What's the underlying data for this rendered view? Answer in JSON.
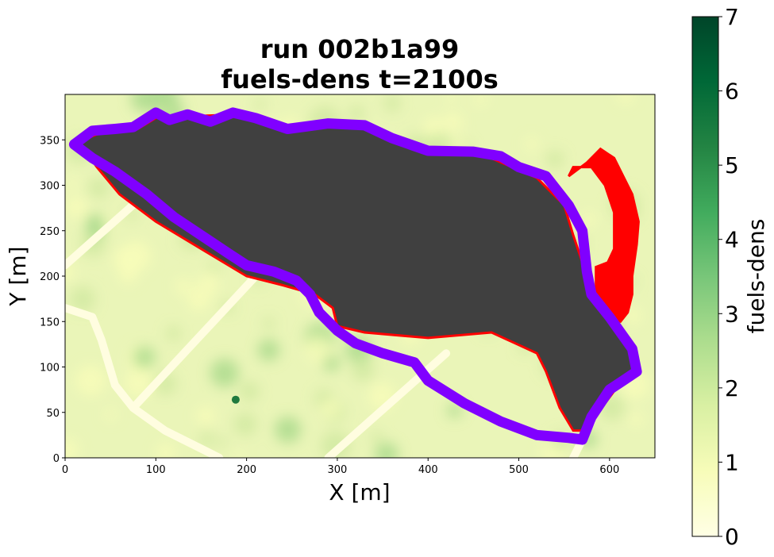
{
  "chart_data": {
    "type": "heatmap",
    "title_line1": "run 002b1a99",
    "title_line2": "fuels-dens t=2100s",
    "xlabel": "X [m]",
    "ylabel": "Y [m]",
    "xlim": [
      0,
      650
    ],
    "ylim": [
      0,
      400
    ],
    "x_ticks": [
      0,
      100,
      200,
      300,
      400,
      500,
      600
    ],
    "y_ticks": [
      0,
      50,
      100,
      150,
      200,
      250,
      300,
      350
    ],
    "colorbar": {
      "label": "fuels-dens",
      "range": [
        0,
        7
      ],
      "ticks": [
        0,
        1,
        2,
        3,
        4,
        5,
        6,
        7
      ],
      "colormap": "YlGn",
      "colors": [
        "#ffffe5",
        "#f7fcb9",
        "#d9f0a3",
        "#addd8e",
        "#78c679",
        "#41ab5d",
        "#238443",
        "#006837",
        "#004529"
      ]
    },
    "colors": {
      "burned_area": "#404040",
      "active_fire_front": "#ff0000",
      "perimeter": "#8000ff"
    },
    "burned_area": [
      [
        15,
        348
      ],
      [
        40,
        358
      ],
      [
        80,
        362
      ],
      [
        100,
        374
      ],
      [
        140,
        376
      ],
      [
        190,
        378
      ],
      [
        230,
        364
      ],
      [
        280,
        368
      ],
      [
        320,
        366
      ],
      [
        360,
        352
      ],
      [
        400,
        340
      ],
      [
        460,
        334
      ],
      [
        520,
        308
      ],
      [
        550,
        278
      ],
      [
        560,
        245
      ],
      [
        570,
        215
      ],
      [
        580,
        178
      ],
      [
        600,
        155
      ],
      [
        625,
        120
      ],
      [
        630,
        95
      ],
      [
        610,
        80
      ],
      [
        595,
        60
      ],
      [
        575,
        30
      ],
      [
        560,
        30
      ],
      [
        545,
        55
      ],
      [
        530,
        95
      ],
      [
        520,
        115
      ],
      [
        470,
        138
      ],
      [
        400,
        132
      ],
      [
        330,
        138
      ],
      [
        300,
        145
      ],
      [
        295,
        165
      ],
      [
        275,
        180
      ],
      [
        240,
        190
      ],
      [
        200,
        200
      ],
      [
        150,
        230
      ],
      [
        100,
        260
      ],
      [
        60,
        290
      ],
      [
        35,
        320
      ]
    ],
    "fire_front": [
      [
        555,
        310
      ],
      [
        575,
        325
      ],
      [
        590,
        340
      ],
      [
        605,
        330
      ],
      [
        615,
        310
      ],
      [
        625,
        290
      ],
      [
        632,
        260
      ],
      [
        630,
        235
      ],
      [
        625,
        200
      ],
      [
        625,
        180
      ],
      [
        620,
        160
      ],
      [
        612,
        150
      ],
      [
        600,
        155
      ],
      [
        585,
        185
      ],
      [
        585,
        210
      ],
      [
        598,
        215
      ],
      [
        605,
        230
      ],
      [
        605,
        270
      ],
      [
        595,
        300
      ],
      [
        580,
        320
      ],
      [
        560,
        320
      ]
    ],
    "perimeter": [
      [
        10,
        345
      ],
      [
        30,
        360
      ],
      [
        55,
        362
      ],
      [
        75,
        364
      ],
      [
        100,
        380
      ],
      [
        115,
        372
      ],
      [
        135,
        378
      ],
      [
        160,
        370
      ],
      [
        185,
        380
      ],
      [
        210,
        374
      ],
      [
        245,
        362
      ],
      [
        290,
        368
      ],
      [
        330,
        366
      ],
      [
        360,
        352
      ],
      [
        400,
        338
      ],
      [
        450,
        337
      ],
      [
        480,
        332
      ],
      [
        500,
        320
      ],
      [
        530,
        310
      ],
      [
        555,
        278
      ],
      [
        570,
        250
      ],
      [
        575,
        205
      ],
      [
        580,
        180
      ],
      [
        600,
        155
      ],
      [
        625,
        120
      ],
      [
        630,
        95
      ],
      [
        615,
        85
      ],
      [
        600,
        75
      ],
      [
        590,
        60
      ],
      [
        580,
        45
      ],
      [
        570,
        20
      ],
      [
        555,
        22
      ],
      [
        520,
        25
      ],
      [
        480,
        40
      ],
      [
        440,
        60
      ],
      [
        400,
        85
      ],
      [
        385,
        105
      ],
      [
        350,
        115
      ],
      [
        320,
        126
      ],
      [
        300,
        140
      ],
      [
        280,
        160
      ],
      [
        270,
        180
      ],
      [
        255,
        195
      ],
      [
        230,
        205
      ],
      [
        200,
        212
      ],
      [
        180,
        225
      ],
      [
        150,
        245
      ],
      [
        120,
        265
      ],
      [
        90,
        290
      ],
      [
        55,
        315
      ],
      [
        30,
        330
      ]
    ]
  }
}
